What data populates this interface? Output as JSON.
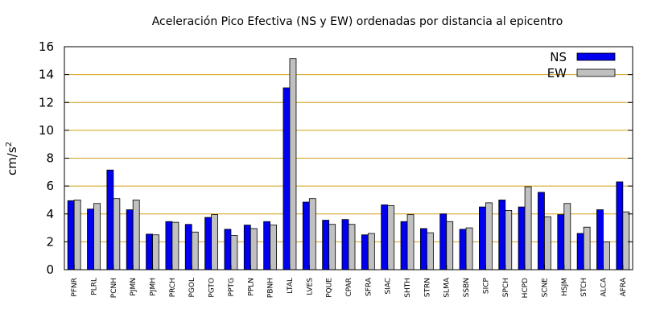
{
  "chart_data": {
    "type": "bar",
    "title": "Aceleración Pico Efectiva (NS y EW) ordenadas por distancia al epicentro",
    "ylabel": "cm/s",
    "ylabel_exponent": "2",
    "xlabel": "",
    "ylim": [
      0,
      16
    ],
    "yticks": [
      0,
      2,
      4,
      6,
      8,
      10,
      12,
      14,
      16
    ],
    "grid": "horizontal",
    "legend_position": "top-right",
    "categories": [
      "PFNR",
      "PLRL",
      "PCNH",
      "PJMN",
      "PJMH",
      "PRCH",
      "PGOL",
      "PGTO",
      "PPTG",
      "PPLN",
      "PBNH",
      "LTAL",
      "LVES",
      "PQUE",
      "CPAR",
      "SFRA",
      "SIAC",
      "SHTH",
      "STRN",
      "SLMA",
      "SSBN",
      "SICP",
      "SPCH",
      "HCPD",
      "SCNE",
      "HSJM",
      "STCH",
      "ALCA",
      "AFRA"
    ],
    "series": [
      {
        "name": "NS",
        "color": "#0000ee",
        "values": [
          4.95,
          4.35,
          7.15,
          4.3,
          2.55,
          3.45,
          3.25,
          3.75,
          2.9,
          3.2,
          3.45,
          13.05,
          4.85,
          3.55,
          3.6,
          2.5,
          4.65,
          3.45,
          2.95,
          4.0,
          2.9,
          4.5,
          5.0,
          4.5,
          5.55,
          3.95,
          2.6,
          4.3,
          6.3
        ]
      },
      {
        "name": "EW",
        "color": "#c0c0c0",
        "values": [
          5.0,
          4.75,
          5.1,
          5.0,
          2.5,
          3.4,
          2.7,
          3.95,
          2.45,
          2.95,
          3.2,
          15.15,
          5.1,
          3.25,
          3.25,
          2.6,
          4.6,
          3.95,
          2.65,
          3.45,
          3.0,
          4.8,
          4.25,
          5.95,
          3.8,
          4.75,
          3.05,
          2.0,
          4.15
        ]
      }
    ],
    "gridline_color": "#d4a017"
  }
}
